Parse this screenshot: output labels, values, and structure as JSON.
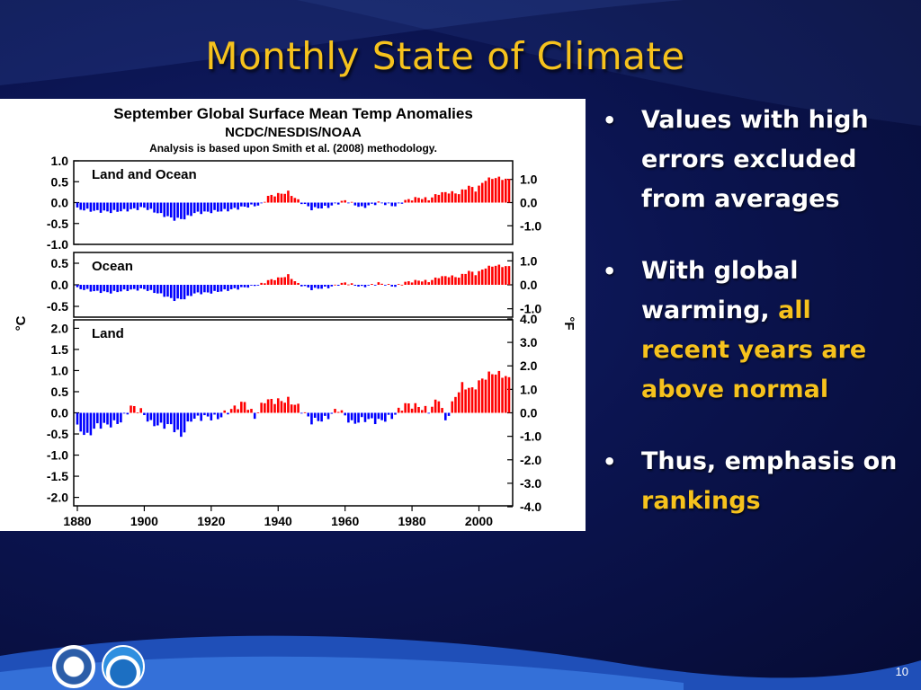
{
  "slide": {
    "title": "Monthly State of Climate",
    "page_number": "10"
  },
  "bullets": [
    {
      "parts": [
        {
          "text": "Values with high errors excluded from averages",
          "highlight": false
        }
      ]
    },
    {
      "parts": [
        {
          "text": "With global warming, ",
          "highlight": false
        },
        {
          "text": "all recent years are above normal",
          "highlight": true
        }
      ]
    },
    {
      "parts": [
        {
          "text": "Thus, emphasis on ",
          "highlight": false
        },
        {
          "text": "rankings",
          "highlight": true
        }
      ]
    }
  ],
  "colors": {
    "highlight": "#f6c21d",
    "positive_bar": "#ff0000",
    "negative_bar": "#0000ff",
    "background": "#0b1450"
  },
  "logos": [
    "department-of-commerce-seal",
    "noaa-logo"
  ],
  "chart_data": {
    "type": "bar",
    "title": "September Global Surface Mean Temp Anomalies",
    "subtitle": "NCDC/NESDIS/NOAA",
    "note": "Analysis is based upon Smith et al. (2008) methodology.",
    "left_axis_unit": "°C",
    "right_axis_unit": "°F",
    "x_ticks": [
      "1880",
      "1900",
      "1920",
      "1940",
      "1960",
      "1980",
      "2000"
    ],
    "x_range": [
      1880,
      2009
    ],
    "grid": false,
    "panels": [
      {
        "name": "Land and Ocean",
        "ylim_c": [
          -1.0,
          1.0
        ],
        "left_ticks": [
          "1.0",
          "0.5",
          "0.0",
          "-0.5",
          "-1.0"
        ],
        "left_tick_values": [
          1.0,
          0.5,
          0.0,
          -0.5,
          -1.0
        ],
        "right_ticks": [
          "1.0",
          "0.0",
          "-1.0"
        ],
        "right_tick_values_f": [
          1.0,
          0.0,
          -1.0
        ],
        "anchors": [
          [
            1880,
            -0.15
          ],
          [
            1885,
            -0.2
          ],
          [
            1890,
            -0.22
          ],
          [
            1895,
            -0.18
          ],
          [
            1900,
            -0.12
          ],
          [
            1905,
            -0.28
          ],
          [
            1909,
            -0.4
          ],
          [
            1912,
            -0.38
          ],
          [
            1915,
            -0.25
          ],
          [
            1920,
            -0.22
          ],
          [
            1925,
            -0.18
          ],
          [
            1930,
            -0.1
          ],
          [
            1935,
            -0.05
          ],
          [
            1937,
            0.15
          ],
          [
            1940,
            0.2
          ],
          [
            1943,
            0.25
          ],
          [
            1946,
            0.05
          ],
          [
            1950,
            -0.15
          ],
          [
            1955,
            -0.1
          ],
          [
            1960,
            0.05
          ],
          [
            1965,
            -0.12
          ],
          [
            1970,
            0.0
          ],
          [
            1975,
            -0.08
          ],
          [
            1978,
            0.05
          ],
          [
            1982,
            0.12
          ],
          [
            1985,
            0.08
          ],
          [
            1988,
            0.22
          ],
          [
            1991,
            0.25
          ],
          [
            1994,
            0.22
          ],
          [
            1997,
            0.4
          ],
          [
            1999,
            0.3
          ],
          [
            2002,
            0.55
          ],
          [
            2005,
            0.6
          ],
          [
            2009,
            0.55
          ]
        ]
      },
      {
        "name": "Ocean",
        "ylim_c": [
          -0.75,
          0.75
        ],
        "left_ticks": [
          "0.5",
          "0.0",
          "-0.5"
        ],
        "left_tick_values": [
          0.5,
          0.0,
          -0.5
        ],
        "right_ticks": [
          "1.0",
          "0.0",
          "-1.0"
        ],
        "right_tick_values_f": [
          1.0,
          0.0,
          -1.0
        ],
        "anchors": [
          [
            1880,
            -0.08
          ],
          [
            1885,
            -0.15
          ],
          [
            1890,
            -0.18
          ],
          [
            1895,
            -0.12
          ],
          [
            1900,
            -0.1
          ],
          [
            1905,
            -0.22
          ],
          [
            1909,
            -0.35
          ],
          [
            1912,
            -0.32
          ],
          [
            1915,
            -0.2
          ],
          [
            1920,
            -0.18
          ],
          [
            1925,
            -0.12
          ],
          [
            1930,
            -0.06
          ],
          [
            1935,
            0.02
          ],
          [
            1937,
            0.1
          ],
          [
            1940,
            0.15
          ],
          [
            1943,
            0.22
          ],
          [
            1946,
            0.02
          ],
          [
            1950,
            -0.1
          ],
          [
            1955,
            -0.06
          ],
          [
            1960,
            0.05
          ],
          [
            1965,
            -0.05
          ],
          [
            1970,
            0.04
          ],
          [
            1975,
            -0.04
          ],
          [
            1978,
            0.06
          ],
          [
            1982,
            0.1
          ],
          [
            1985,
            0.08
          ],
          [
            1988,
            0.18
          ],
          [
            1991,
            0.2
          ],
          [
            1994,
            0.18
          ],
          [
            1997,
            0.32
          ],
          [
            1999,
            0.25
          ],
          [
            2002,
            0.4
          ],
          [
            2005,
            0.45
          ],
          [
            2009,
            0.42
          ]
        ]
      },
      {
        "name": "Land",
        "ylim_c": [
          -2.2,
          2.2
        ],
        "left_ticks": [
          "2.0",
          "1.5",
          "1.0",
          "0.5",
          "0.0",
          "-0.5",
          "-1.0",
          "-1.5",
          "-2.0"
        ],
        "left_tick_values": [
          2.0,
          1.5,
          1.0,
          0.5,
          0.0,
          -0.5,
          -1.0,
          -1.5,
          -2.0
        ],
        "right_ticks": [
          "4.0",
          "3.0",
          "2.0",
          "1.0",
          "0.0",
          "-1.0",
          "-2.0",
          "-3.0",
          "-4.0"
        ],
        "right_tick_values_f": [
          4.0,
          3.0,
          2.0,
          1.0,
          0.0,
          -1.0,
          -2.0,
          -3.0,
          -4.0
        ],
        "anchors": [
          [
            1880,
            -0.35
          ],
          [
            1883,
            -0.55
          ],
          [
            1886,
            -0.3
          ],
          [
            1890,
            -0.28
          ],
          [
            1893,
            -0.2
          ],
          [
            1896,
            0.15
          ],
          [
            1899,
            0.05
          ],
          [
            1902,
            -0.25
          ],
          [
            1905,
            -0.3
          ],
          [
            1908,
            -0.3
          ],
          [
            1911,
            -0.55
          ],
          [
            1914,
            -0.15
          ],
          [
            1918,
            -0.1
          ],
          [
            1922,
            -0.12
          ],
          [
            1926,
            0.08
          ],
          [
            1930,
            0.25
          ],
          [
            1933,
            -0.1
          ],
          [
            1936,
            0.3
          ],
          [
            1940,
            0.28
          ],
          [
            1943,
            0.3
          ],
          [
            1946,
            0.15
          ],
          [
            1950,
            -0.2
          ],
          [
            1954,
            -0.15
          ],
          [
            1958,
            0.1
          ],
          [
            1962,
            -0.25
          ],
          [
            1966,
            -0.15
          ],
          [
            1970,
            -0.2
          ],
          [
            1974,
            -0.1
          ],
          [
            1978,
            0.2
          ],
          [
            1982,
            0.15
          ],
          [
            1985,
            0.05
          ],
          [
            1988,
            0.35
          ],
          [
            1990,
            -0.2
          ],
          [
            1993,
            0.4
          ],
          [
            1995,
            0.65
          ],
          [
            1998,
            0.55
          ],
          [
            2001,
            0.8
          ],
          [
            2004,
            0.95
          ],
          [
            2007,
            0.9
          ],
          [
            2009,
            0.8
          ]
        ]
      }
    ]
  }
}
